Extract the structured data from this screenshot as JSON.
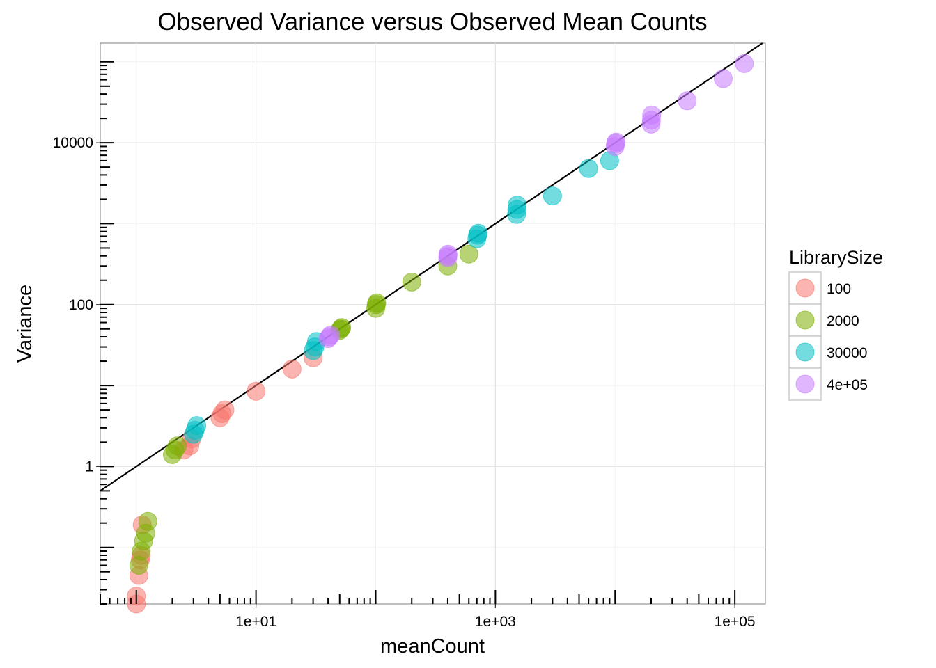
{
  "chart_data": {
    "type": "scatter",
    "title": "Observed Variance versus Observed Mean Counts",
    "xlabel": "meanCount",
    "ylabel": "Variance",
    "x_scale": "log10",
    "y_scale": "log10",
    "xlim": [
      0.5,
      180000
    ],
    "ylim": [
      0.02,
      170000
    ],
    "x_tick_values": [
      10,
      1000,
      100000
    ],
    "x_tick_labels": [
      "1e+01",
      "1e+03",
      "1e+05"
    ],
    "y_tick_values": [
      1,
      100,
      10000
    ],
    "y_tick_labels": [
      "1",
      "100",
      "10000"
    ],
    "grid": true,
    "reference_line": {
      "description": "variance = mean",
      "slope": 1,
      "intercept": 0
    },
    "legend": {
      "title": "LibrarySize",
      "position": "right",
      "entries": [
        "100",
        "2000",
        "30000",
        "4e+05"
      ]
    },
    "series": [
      {
        "name": "100",
        "color": "#F8766D",
        "points": [
          [
            1.0,
            0.02
          ],
          [
            1.0,
            0.025
          ],
          [
            1.05,
            0.045
          ],
          [
            1.08,
            0.07
          ],
          [
            1.1,
            0.08
          ],
          [
            1.12,
            0.19
          ],
          [
            2.5,
            1.6
          ],
          [
            2.8,
            1.8
          ],
          [
            2.9,
            2.2
          ],
          [
            5.0,
            4.0
          ],
          [
            5.2,
            4.5
          ],
          [
            5.5,
            5.0
          ],
          [
            10.0,
            8.5
          ],
          [
            20.0,
            16.0
          ],
          [
            30.0,
            22.0
          ]
        ]
      },
      {
        "name": "2000",
        "color": "#7CAE00",
        "points": [
          [
            1.05,
            0.06
          ],
          [
            1.1,
            0.09
          ],
          [
            1.15,
            0.12
          ],
          [
            1.2,
            0.15
          ],
          [
            1.25,
            0.21
          ],
          [
            2.0,
            1.4
          ],
          [
            2.1,
            1.6
          ],
          [
            2.2,
            1.8
          ],
          [
            50,
            48
          ],
          [
            51,
            50
          ],
          [
            52,
            52
          ],
          [
            100,
            90
          ],
          [
            101,
            100
          ],
          [
            102,
            105
          ],
          [
            200,
            190
          ],
          [
            400,
            300
          ],
          [
            600,
            420
          ]
        ]
      },
      {
        "name": "30000",
        "color": "#00BFC4",
        "points": [
          [
            3.0,
            2.5
          ],
          [
            3.1,
            2.8
          ],
          [
            3.2,
            3.2
          ],
          [
            30,
            27
          ],
          [
            31,
            30
          ],
          [
            32,
            35
          ],
          [
            700,
            650
          ],
          [
            710,
            720
          ],
          [
            720,
            760
          ],
          [
            1500,
            1300
          ],
          [
            1510,
            1500
          ],
          [
            1520,
            1700
          ],
          [
            3000,
            2200
          ],
          [
            6000,
            4800
          ],
          [
            9000,
            6000
          ]
        ]
      },
      {
        "name": "4e+05",
        "color": "#C77CFF",
        "points": [
          [
            40,
            38
          ],
          [
            41,
            40
          ],
          [
            42,
            42
          ],
          [
            400,
            380
          ],
          [
            401,
            400
          ],
          [
            402,
            420
          ],
          [
            10000,
            9000
          ],
          [
            10100,
            9800
          ],
          [
            10200,
            10200
          ],
          [
            20000,
            17000
          ],
          [
            20100,
            19000
          ],
          [
            20200,
            22000
          ],
          [
            40000,
            33000
          ],
          [
            80000,
            62000
          ],
          [
            120000,
            95000
          ]
        ]
      }
    ]
  }
}
